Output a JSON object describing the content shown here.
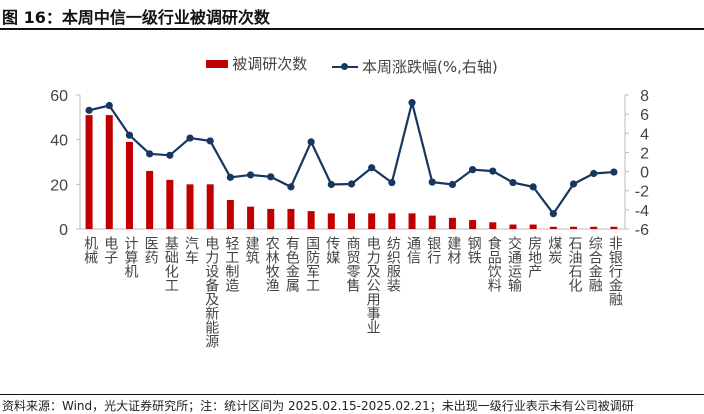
{
  "title": "图 16：本周中信一级行业被调研次数",
  "source": "资料来源：Wind，光大证券研究所；注：统计区间为 2025.02.15-2025.02.21；未出现一级行业表示未有公司被调研",
  "chart_data": {
    "type": "bar+line",
    "categories": [
      "机械",
      "电子",
      "计算机",
      "医药",
      "基础化工",
      "汽车",
      "电力设备及新能源",
      "轻工制造",
      "建筑",
      "农林牧渔",
      "有色金属",
      "国防军工",
      "传媒",
      "商贸零售",
      "电力及公用事业",
      "纺织服装",
      "通信",
      "银行",
      "建材",
      "钢铁",
      "食品饮料",
      "交通运输",
      "房地产",
      "煤炭",
      "石油石化",
      "综合金融",
      "非银行金融"
    ],
    "series": [
      {
        "name": "被调研次数",
        "type": "bar",
        "axis": "left",
        "color": "#c00000",
        "values": [
          51,
          51,
          39,
          26,
          22,
          20,
          20,
          13,
          10,
          9,
          9,
          8,
          7,
          7,
          7,
          7,
          7,
          6,
          5,
          4,
          3,
          2,
          2,
          1,
          1,
          1,
          1
        ]
      },
      {
        "name": "本周涨跌幅(%,右轴)",
        "type": "line",
        "axis": "right",
        "color": "#17375e",
        "values": [
          6.4,
          6.9,
          3.8,
          1.85,
          1.7,
          3.5,
          3.2,
          -0.6,
          -0.35,
          -0.55,
          -1.6,
          3.1,
          -1.35,
          -1.3,
          0.4,
          -1.15,
          7.2,
          -1.1,
          -1.35,
          0.2,
          0.05,
          -1.15,
          -1.6,
          -4.4,
          -1.3,
          -0.2,
          -0.05
        ]
      }
    ],
    "left_axis": {
      "ylim": [
        0,
        60
      ],
      "ticks": [
        "0",
        "20",
        "40",
        "60"
      ]
    },
    "right_axis": {
      "ylim": [
        -6,
        8
      ],
      "ticks": [
        "-6",
        "-4",
        "-2",
        "0",
        "2",
        "4",
        "6",
        "8"
      ]
    },
    "legend": "top-center",
    "grid": false
  }
}
